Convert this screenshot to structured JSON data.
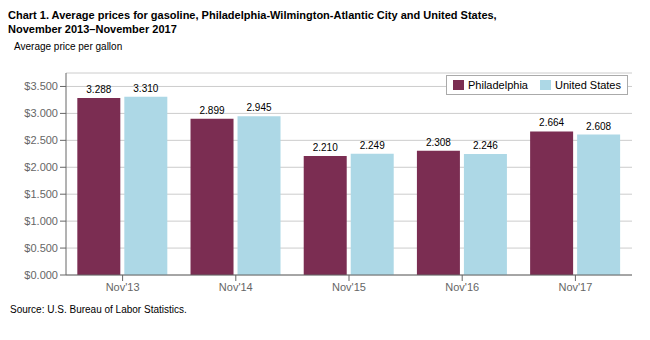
{
  "chart_data": {
    "type": "bar",
    "title": "Chart 1. Average prices for gasoline, Philadelphia-Wilmington-Atlantic City and United States,",
    "subtitle": "November 2013–November 2017",
    "ylabel": "Average price per gallon",
    "source": "Source: U.S. Bureau of Labor Statistics.",
    "categories": [
      "Nov'13",
      "Nov'14",
      "Nov'15",
      "Nov'16",
      "Nov'17"
    ],
    "series": [
      {
        "name": "Philadelphia",
        "color": "#7B2D52",
        "values": [
          3.288,
          2.899,
          2.21,
          2.308,
          2.664
        ],
        "value_labels": [
          "3.288",
          "2.899",
          "2.210",
          "2.308",
          "2.664"
        ]
      },
      {
        "name": "United States",
        "color": "#ADD8E6",
        "values": [
          3.31,
          2.945,
          2.249,
          2.246,
          2.608
        ],
        "value_labels": [
          "3.310",
          "2.945",
          "2.249",
          "2.246",
          "2.608"
        ]
      }
    ],
    "ylim": [
      0,
      3.75
    ],
    "yticks": [
      {
        "value": 0.0,
        "label": "$0.000"
      },
      {
        "value": 0.5,
        "label": "$0.500"
      },
      {
        "value": 1.0,
        "label": "$1.000"
      },
      {
        "value": 1.5,
        "label": "$1.500"
      },
      {
        "value": 2.0,
        "label": "$2.000"
      },
      {
        "value": 2.5,
        "label": "$2.500"
      },
      {
        "value": 3.0,
        "label": "$3.000"
      },
      {
        "value": 3.5,
        "label": "$3.500"
      }
    ],
    "grid": true,
    "legend": "upper right",
    "data_labels": true
  }
}
